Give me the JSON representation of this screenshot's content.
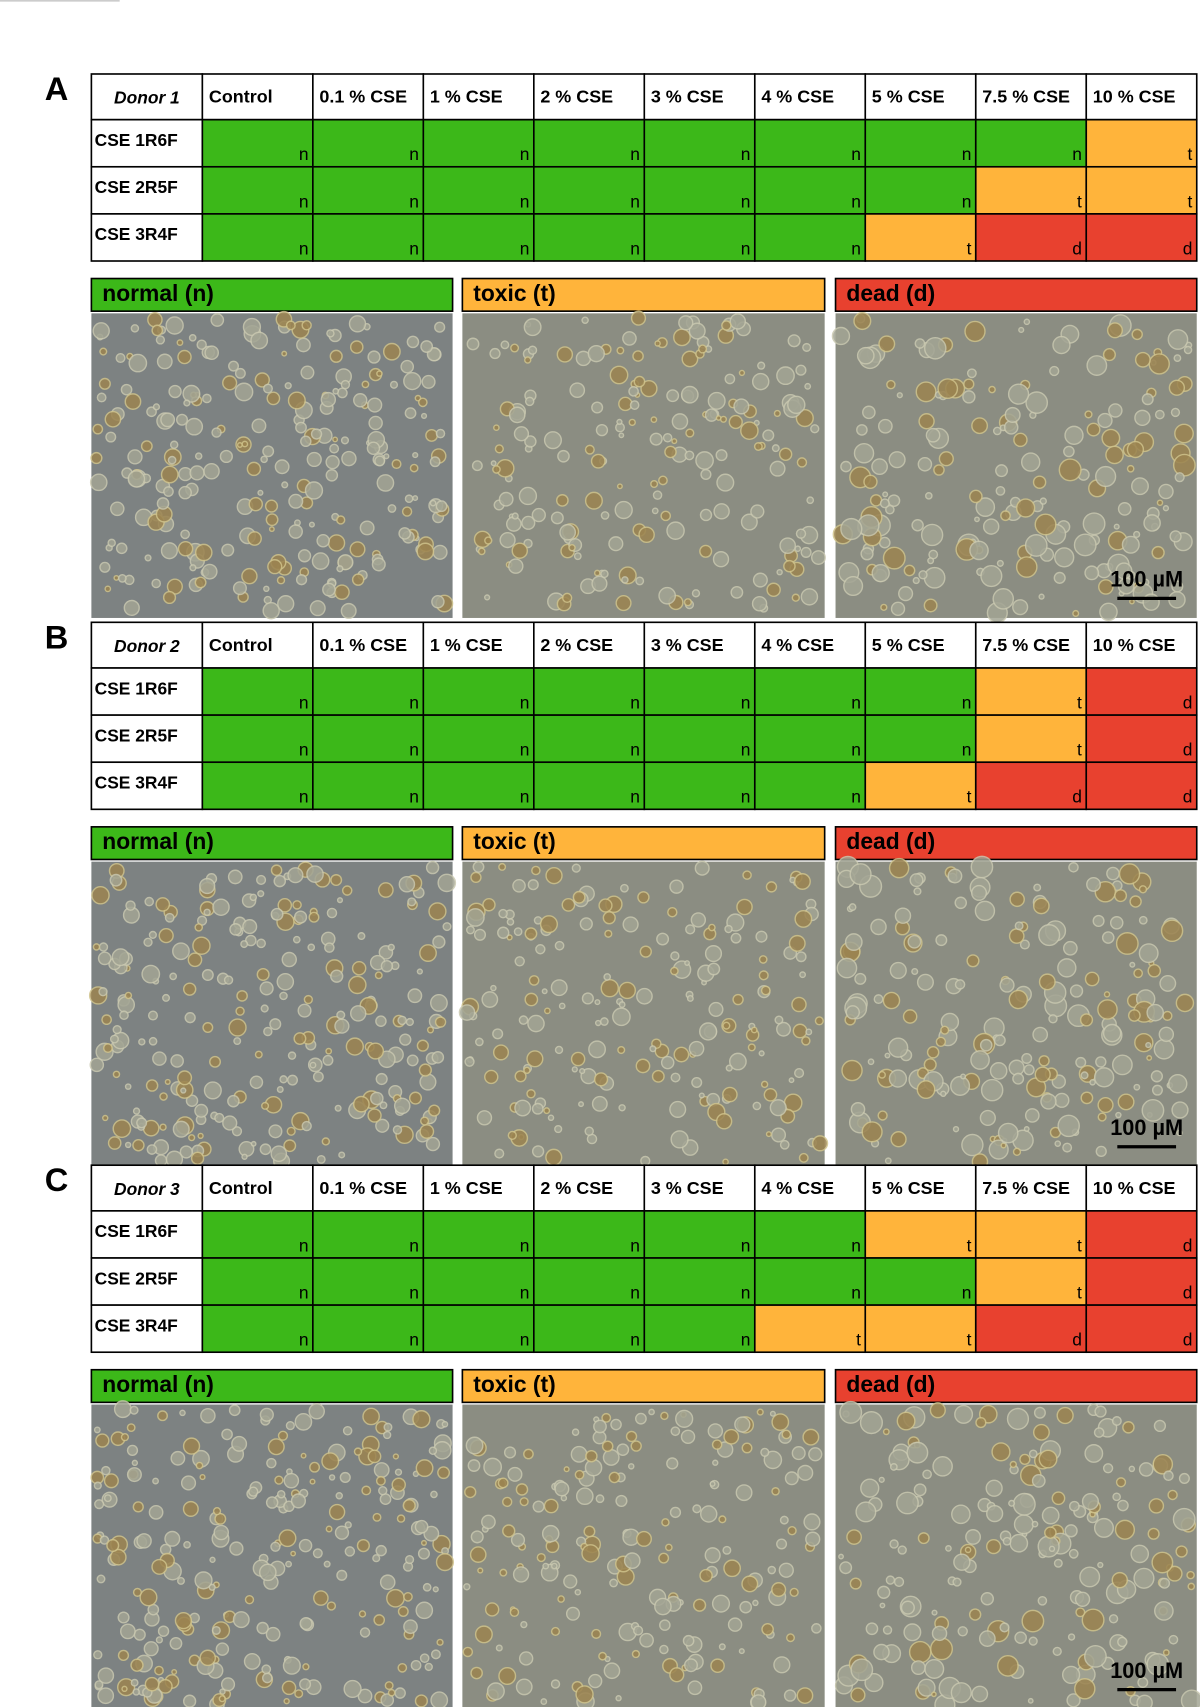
{
  "columns": [
    "Control",
    "0.1 % CSE",
    "1 % CSE",
    "2 % CSE",
    "3 % CSE",
    "4 % CSE",
    "5 % CSE",
    "7.5 % CSE",
    "10 % CSE"
  ],
  "legend": {
    "n": "normal (n)",
    "t": "toxic (t)",
    "d": "dead (d)"
  },
  "colors": {
    "n": "#3cb819",
    "t": "#ffb43b",
    "d": "#e8412f"
  },
  "scale_bar": "100 µM",
  "panels": [
    {
      "label": "A",
      "donor": "Donor 1",
      "rows": [
        {
          "label": "CSE 1R6F",
          "cells": [
            "n",
            "n",
            "n",
            "n",
            "n",
            "n",
            "n",
            "n",
            "t"
          ]
        },
        {
          "label": "CSE 2R5F",
          "cells": [
            "n",
            "n",
            "n",
            "n",
            "n",
            "n",
            "n",
            "t",
            "t"
          ]
        },
        {
          "label": "CSE 3R4F",
          "cells": [
            "n",
            "n",
            "n",
            "n",
            "n",
            "n",
            "t",
            "d",
            "d"
          ]
        }
      ]
    },
    {
      "label": "B",
      "donor": "Donor 2",
      "rows": [
        {
          "label": "CSE 1R6F",
          "cells": [
            "n",
            "n",
            "n",
            "n",
            "n",
            "n",
            "n",
            "t",
            "d"
          ]
        },
        {
          "label": "CSE 2R5F",
          "cells": [
            "n",
            "n",
            "n",
            "n",
            "n",
            "n",
            "n",
            "t",
            "d"
          ]
        },
        {
          "label": "CSE 3R4F",
          "cells": [
            "n",
            "n",
            "n",
            "n",
            "n",
            "n",
            "t",
            "d",
            "d"
          ]
        }
      ]
    },
    {
      "label": "C",
      "donor": "Donor 3",
      "rows": [
        {
          "label": "CSE 1R6F",
          "cells": [
            "n",
            "n",
            "n",
            "n",
            "n",
            "n",
            "t",
            "t",
            "d"
          ]
        },
        {
          "label": "CSE 2R5F",
          "cells": [
            "n",
            "n",
            "n",
            "n",
            "n",
            "n",
            "n",
            "t",
            "d"
          ]
        },
        {
          "label": "CSE 3R4F",
          "cells": [
            "n",
            "n",
            "n",
            "n",
            "n",
            "t",
            "t",
            "d",
            "d"
          ]
        }
      ]
    }
  ]
}
